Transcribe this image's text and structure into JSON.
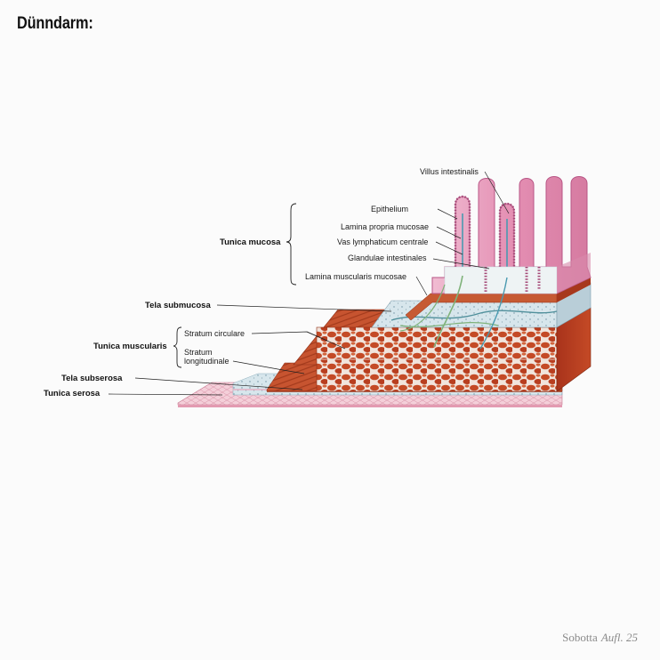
{
  "title": "Dünndarm:",
  "labels": {
    "villus_intestinalis": "Villus intestinalis",
    "epithelium": "Epithelium",
    "lamina_propria_mucosae": "Lamina propria mucosae",
    "vas_lymphaticum_centrale": "Vas lymphaticum centrale",
    "glandulae_intestinales": "Glandulae intestinales",
    "lamina_muscularis_mucosae": "Lamina muscularis mucosae",
    "tunica_mucosa": "Tunica mucosa",
    "tela_submucosa": "Tela submucosa",
    "tunica_muscularis": "Tunica muscularis",
    "stratum_circulare": "Stratum circulare",
    "stratum_longitudinale_1": "Stratum",
    "stratum_longitudinale_2": "longitudinale",
    "tela_subserosa": "Tela subserosa",
    "tunica_serosa": "Tunica serosa"
  },
  "credit": {
    "source": "Sobotta",
    "edition": "Aufl. 25"
  },
  "colors": {
    "mucosa_pink": "#e9a3c0",
    "epithelium_pink": "#c65f8c",
    "submucosa_blue": "#cfe0e8",
    "muscle_red": "#c2502e",
    "serosa_pink": "#f2c6d2"
  }
}
